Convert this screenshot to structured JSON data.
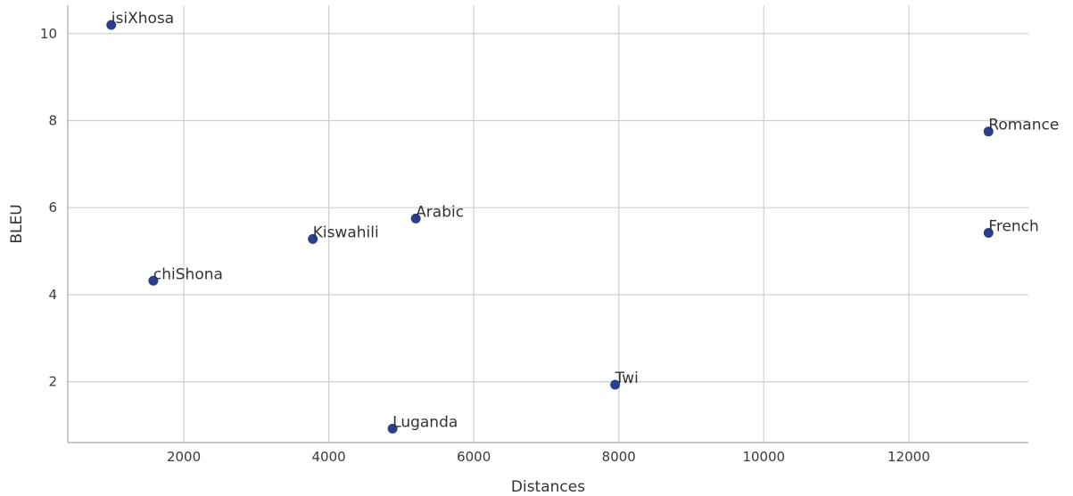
{
  "chart_data": {
    "type": "scatter",
    "title": "",
    "xlabel": "Distances",
    "ylabel": "BLEU",
    "xlim": [
      400,
      13650
    ],
    "ylim": [
      0.6,
      10.65
    ],
    "xticks": [
      2000,
      4000,
      6000,
      8000,
      10000,
      12000
    ],
    "yticks": [
      2,
      4,
      6,
      8,
      10
    ],
    "grid": true,
    "marker_color": "#2b3f8c",
    "points": [
      {
        "label": "isiXhosa",
        "x": 1000,
        "y": 10.2
      },
      {
        "label": "Romance",
        "x": 13100,
        "y": 7.75
      },
      {
        "label": "Arabic",
        "x": 5200,
        "y": 5.75
      },
      {
        "label": "Kiswahili",
        "x": 3780,
        "y": 5.28
      },
      {
        "label": "French",
        "x": 13100,
        "y": 5.42
      },
      {
        "label": "chiShona",
        "x": 1580,
        "y": 4.32
      },
      {
        "label": "Twi",
        "x": 7950,
        "y": 1.93
      },
      {
        "label": "Luganda",
        "x": 4880,
        "y": 0.92
      }
    ]
  }
}
